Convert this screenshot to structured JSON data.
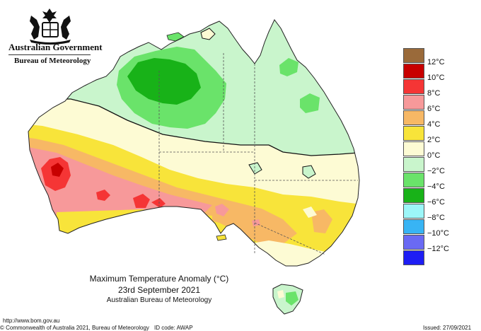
{
  "header": {
    "government": "Australian Government",
    "bureau": "Bureau of Meteorology"
  },
  "title": {
    "line1": "Maximum Temperature Anomaly (°C)",
    "line2": "23rd September 2021",
    "line3": "Australian Bureau of Meteorology"
  },
  "legend": {
    "items": [
      {
        "label": "",
        "color": "#9a6a3a"
      },
      {
        "label": "12°C",
        "color": "#c80000"
      },
      {
        "label": "10°C",
        "color": "#f53535"
      },
      {
        "label": "8°C",
        "color": "#f7999a"
      },
      {
        "label": "6°C",
        "color": "#f7b865"
      },
      {
        "label": "4°C",
        "color": "#f8e43a"
      },
      {
        "label": "2°C",
        "color": "#fdfbd4"
      },
      {
        "label": "0°C",
        "color": "#c9f5cc"
      },
      {
        "label": "−2°C",
        "color": "#6ae36a"
      },
      {
        "label": "−4°C",
        "color": "#18b218"
      },
      {
        "label": "−6°C",
        "color": "#9cf6f8"
      },
      {
        "label": "−8°C",
        "color": "#38b4f4"
      },
      {
        "label": "−10°C",
        "color": "#6a6af4"
      },
      {
        "label": "−12°C",
        "color": "#1e1ef4"
      }
    ]
  },
  "footer": {
    "url": "http://www.bom.gov.au",
    "copyright": "© Commonwealth of Australia 2021, Bureau of Meteorology",
    "id_code": "ID code: AWAP",
    "issued": "Issued: 27/09/2021"
  }
}
